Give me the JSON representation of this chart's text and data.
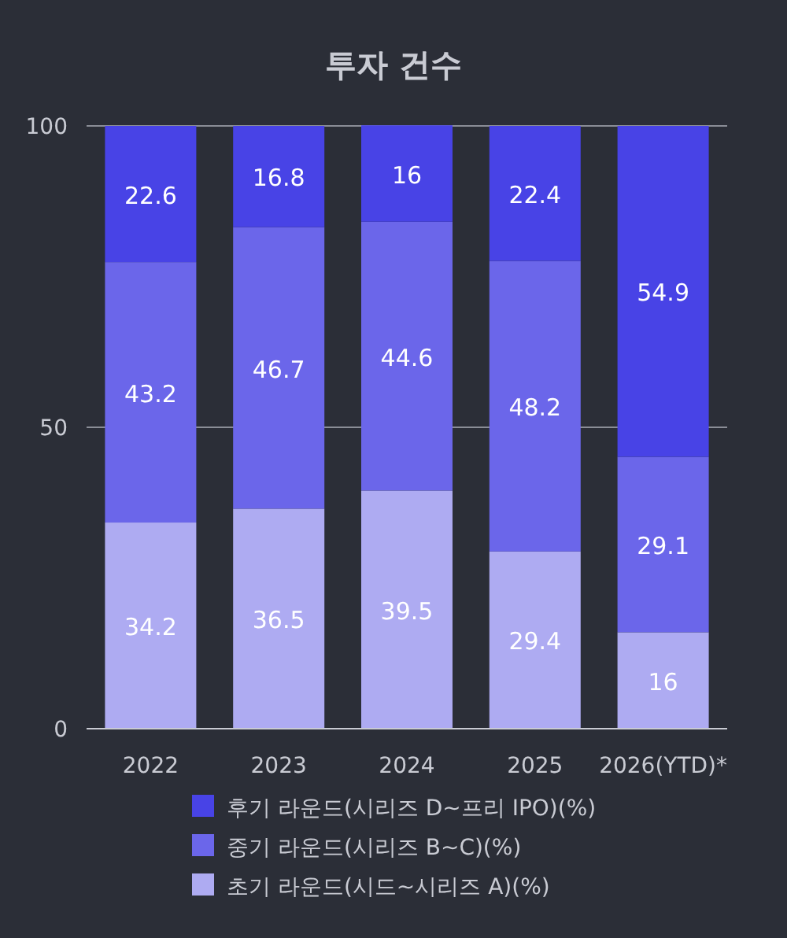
{
  "chart_data": {
    "type": "bar",
    "title": "투자 건수",
    "stacked": true,
    "categories": [
      "2022",
      "2023",
      "2024",
      "2025",
      "2026(YTD)*"
    ],
    "series": [
      {
        "name": "초기 라운드(시드~시리즈 A)(%)",
        "color": "#aeabf2",
        "values": [
          34.2,
          36.5,
          39.5,
          29.4,
          16
        ]
      },
      {
        "name": "중기 라운드(시리즈 B~C)(%)",
        "color": "#6b66ea",
        "values": [
          43.2,
          46.7,
          44.6,
          48.2,
          29.1
        ]
      },
      {
        "name": "후기 라운드(시리즈 D~프리 IPO)(%)",
        "color": "#4843e6",
        "values": [
          22.6,
          16.8,
          16,
          22.4,
          54.9
        ]
      }
    ],
    "ylim": [
      0,
      100
    ],
    "yticks": [
      0,
      50,
      100
    ],
    "grid": "y",
    "legend": "bottom",
    "data_labels": true
  }
}
